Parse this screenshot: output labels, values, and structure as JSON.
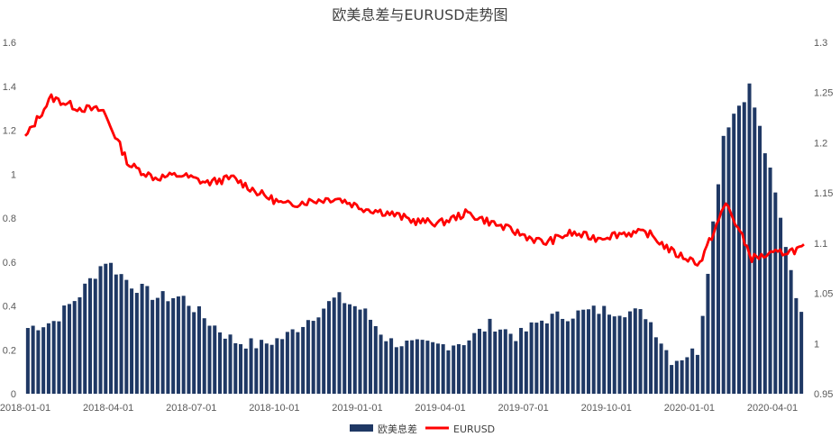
{
  "chart_data": {
    "type": "bar",
    "title": "欧美息差与EURUSD走势图",
    "x_tick_labels": [
      "2018-01-01",
      "2018-04-01",
      "2018-07-01",
      "2018-10-01",
      "2019-01-01",
      "2019-04-01",
      "2019-07-01",
      "2019-10-01",
      "2020-01-01",
      "2020-04-01"
    ],
    "y_left": {
      "range": [
        0,
        1.6
      ],
      "ticks": [
        "0",
        "0.2",
        "0.4",
        "0.6",
        "0.8",
        "1",
        "1.2",
        "1.4",
        "1.6"
      ]
    },
    "y_right": {
      "range": [
        0.95,
        1.3
      ],
      "ticks": [
        "0.95",
        "1",
        "1.05",
        "1.1",
        "1.15",
        "1.2",
        "1.25",
        "1.3"
      ]
    },
    "legend_position": "bottom",
    "series": [
      {
        "name": "欧美息差",
        "kind": "bar",
        "axis": "left",
        "color": "#1f3864",
        "months": [
          "2018-01",
          "2018-02",
          "2018-03",
          "2018-04",
          "2018-05",
          "2018-06",
          "2018-07",
          "2018-08",
          "2018-09",
          "2018-10",
          "2018-11",
          "2018-12",
          "2019-01",
          "2019-02",
          "2019-03",
          "2019-04",
          "2019-05",
          "2019-06",
          "2019-07",
          "2019-08",
          "2019-09",
          "2019-10",
          "2019-11",
          "2019-12",
          "2020-01",
          "2020-02",
          "2020-03",
          "2020-03b",
          "2020-04",
          "2020-04b",
          "2020-05"
        ],
        "values": [
          0.3,
          0.33,
          0.45,
          0.61,
          0.5,
          0.44,
          0.44,
          0.33,
          0.24,
          0.22,
          0.26,
          0.35,
          0.44,
          0.38,
          0.24,
          0.22,
          0.22,
          0.24,
          0.32,
          0.26,
          0.34,
          0.36,
          0.38,
          0.38,
          0.36,
          0.15,
          0.2,
          1.2,
          1.4,
          0.9,
          0.35
        ]
      },
      {
        "name": "EURUSD",
        "kind": "line",
        "axis": "right",
        "color": "#ff0000",
        "months": [
          "2018-01",
          "2018-02",
          "2018-03",
          "2018-04",
          "2018-05",
          "2018-06",
          "2018-07",
          "2018-08",
          "2018-09",
          "2018-10",
          "2018-11",
          "2018-12",
          "2019-01",
          "2019-02",
          "2019-03",
          "2019-04",
          "2019-05",
          "2019-06",
          "2019-07",
          "2019-08",
          "2019-09",
          "2019-10",
          "2019-11",
          "2019-12",
          "2020-01",
          "2020-02",
          "2020-03",
          "2020-03b",
          "2020-04",
          "2020-04b",
          "2020-05"
        ],
        "values": [
          1.205,
          1.245,
          1.235,
          1.232,
          1.178,
          1.165,
          1.168,
          1.16,
          1.165,
          1.15,
          1.138,
          1.142,
          1.145,
          1.135,
          1.13,
          1.122,
          1.12,
          1.13,
          1.12,
          1.11,
          1.1,
          1.11,
          1.105,
          1.11,
          1.11,
          1.09,
          1.08,
          1.14,
          1.085,
          1.09,
          1.095
        ]
      }
    ]
  }
}
